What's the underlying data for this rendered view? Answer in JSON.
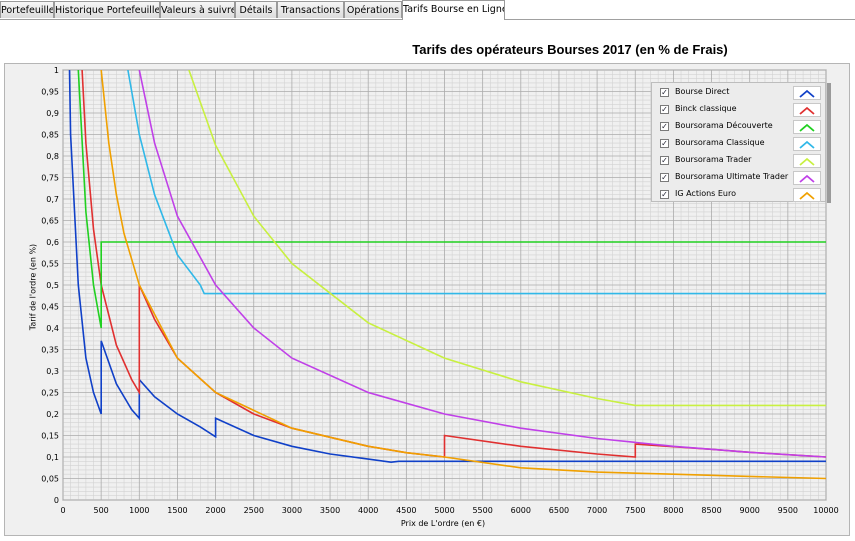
{
  "tabs": [
    {
      "label": "Portefeuille",
      "active": false
    },
    {
      "label": "Historique Portefeuille",
      "active": false
    },
    {
      "label": "Valeurs à suivre",
      "active": false
    },
    {
      "label": "Détails",
      "active": false
    },
    {
      "label": "Transactions",
      "active": false
    },
    {
      "label": "Opérations",
      "active": false
    },
    {
      "label": "Tarifs Bourse en Ligne",
      "active": true
    }
  ],
  "chart_data": {
    "type": "line",
    "title": "Tarifs des opérateurs Bourses 2017 (en % de Frais)",
    "xlabel": "Prix de L'ordre (en €)",
    "ylabel": "Tarif de l'ordre (en %)",
    "xlim": [
      0,
      10000
    ],
    "ylim": [
      0,
      1
    ],
    "xticks": [
      "0",
      "500",
      "1000",
      "1500",
      "2000",
      "2500",
      "3000",
      "3500",
      "4000",
      "4500",
      "5000",
      "5500",
      "6000",
      "6500",
      "7000",
      "7500",
      "8000",
      "8500",
      "9000",
      "9500",
      "10000"
    ],
    "yticks": [
      "0",
      "0,05",
      "0,1",
      "0,15",
      "0,2",
      "0,25",
      "0,3",
      "0,35",
      "0,4",
      "0,45",
      "0,5",
      "0,55",
      "0,6",
      "0,65",
      "0,7",
      "0,75",
      "0,8",
      "0,85",
      "0,9",
      "0,95",
      "1"
    ],
    "grid": true,
    "legend_position": "top-right",
    "background": "#f0f0f0",
    "grid_color": "#ababab",
    "minor_grid_color": "#d2d2d2",
    "series": [
      {
        "name": "Bourse Direct",
        "color": "#1040c8",
        "checked": true,
        "points": [
          [
            85,
            1
          ],
          [
            100,
            0.85
          ],
          [
            200,
            0.5
          ],
          [
            300,
            0.33
          ],
          [
            400,
            0.25
          ],
          [
            500,
            0.2
          ],
          [
            500,
            0.37
          ],
          [
            700,
            0.27
          ],
          [
            900,
            0.21
          ],
          [
            1000,
            0.19
          ],
          [
            1000,
            0.28
          ],
          [
            1200,
            0.24
          ],
          [
            1500,
            0.2
          ],
          [
            1800,
            0.17
          ],
          [
            2000,
            0.147
          ],
          [
            2000,
            0.19
          ],
          [
            2500,
            0.15
          ],
          [
            3000,
            0.125
          ],
          [
            3500,
            0.107
          ],
          [
            4000,
            0.095
          ],
          [
            4300,
            0.088
          ],
          [
            4400,
            0.09
          ],
          [
            10000,
            0.09
          ]
        ]
      },
      {
        "name": "Binck classique",
        "color": "#e03030",
        "checked": true,
        "points": [
          [
            250,
            1
          ],
          [
            300,
            0.83
          ],
          [
            400,
            0.63
          ],
          [
            500,
            0.5
          ],
          [
            700,
            0.36
          ],
          [
            900,
            0.28
          ],
          [
            1000,
            0.25
          ],
          [
            1000,
            0.5
          ],
          [
            1200,
            0.42
          ],
          [
            1500,
            0.33
          ],
          [
            2000,
            0.25
          ],
          [
            2500,
            0.2
          ],
          [
            3000,
            0.167
          ],
          [
            4000,
            0.125
          ],
          [
            4500,
            0.11
          ],
          [
            5000,
            0.1
          ],
          [
            5000,
            0.15
          ],
          [
            6000,
            0.125
          ],
          [
            7000,
            0.107
          ],
          [
            7500,
            0.1
          ],
          [
            7500,
            0.13
          ],
          [
            8500,
            0.118
          ],
          [
            9000,
            0.111
          ],
          [
            10000,
            0.1
          ]
        ]
      },
      {
        "name": "Boursorama Découverte",
        "color": "#20d020",
        "checked": true,
        "points": [
          [
            200,
            1
          ],
          [
            300,
            0.67
          ],
          [
            400,
            0.5
          ],
          [
            500,
            0.4
          ],
          [
            500,
            0.6
          ],
          [
            10000,
            0.6
          ]
        ]
      },
      {
        "name": "Boursorama Classique",
        "color": "#30b8e8",
        "checked": true,
        "points": [
          [
            850,
            1
          ],
          [
            1000,
            0.85
          ],
          [
            1200,
            0.71
          ],
          [
            1500,
            0.57
          ],
          [
            1800,
            0.5
          ],
          [
            1850,
            0.48
          ],
          [
            10000,
            0.48
          ]
        ]
      },
      {
        "name": "Boursorama Trader",
        "color": "#c8f040",
        "checked": true,
        "points": [
          [
            1650,
            1
          ],
          [
            2000,
            0.825
          ],
          [
            2500,
            0.66
          ],
          [
            3000,
            0.55
          ],
          [
            4000,
            0.412
          ],
          [
            5000,
            0.33
          ],
          [
            6000,
            0.275
          ],
          [
            7000,
            0.236
          ],
          [
            7500,
            0.22
          ],
          [
            10000,
            0.22
          ]
        ]
      },
      {
        "name": "Boursorama Ultimate Trader",
        "color": "#c040e8",
        "checked": true,
        "points": [
          [
            1000,
            1
          ],
          [
            1200,
            0.83
          ],
          [
            1500,
            0.66
          ],
          [
            2000,
            0.5
          ],
          [
            2500,
            0.4
          ],
          [
            3000,
            0.33
          ],
          [
            4000,
            0.25
          ],
          [
            5000,
            0.2
          ],
          [
            6000,
            0.167
          ],
          [
            7000,
            0.143
          ],
          [
            8000,
            0.125
          ],
          [
            9000,
            0.111
          ],
          [
            10000,
            0.1
          ]
        ]
      },
      {
        "name": "IG Actions Euro",
        "color": "#f0a000",
        "checked": true,
        "points": [
          [
            500,
            1
          ],
          [
            600,
            0.83
          ],
          [
            700,
            0.71
          ],
          [
            800,
            0.62
          ],
          [
            1000,
            0.5
          ],
          [
            1500,
            0.33
          ],
          [
            2000,
            0.25
          ],
          [
            3000,
            0.167
          ],
          [
            4000,
            0.125
          ],
          [
            4500,
            0.11
          ],
          [
            5000,
            0.1
          ],
          [
            6000,
            0.075
          ],
          [
            7000,
            0.065
          ],
          [
            8000,
            0.06
          ],
          [
            9000,
            0.055
          ],
          [
            10000,
            0.05
          ]
        ]
      }
    ]
  }
}
